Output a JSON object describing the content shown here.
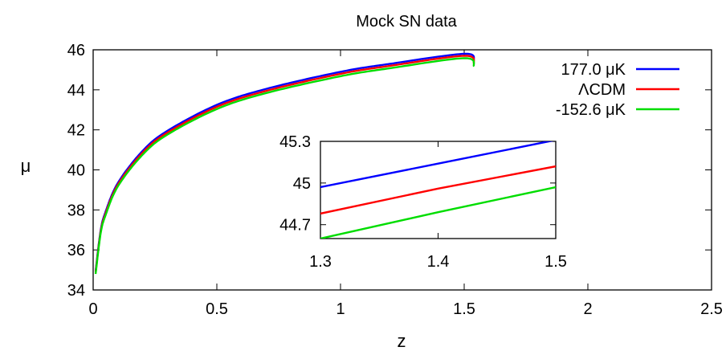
{
  "chart_data": [
    {
      "type": "line",
      "title": "Mock SN data",
      "xlabel": "z",
      "ylabel": "μ",
      "xlim": [
        0,
        2.5
      ],
      "ylim": [
        34,
        46
      ],
      "xticks": [
        "0",
        "0.5",
        "1",
        "1.5",
        "2",
        "2.5"
      ],
      "yticks": [
        "34",
        "36",
        "38",
        "40",
        "42",
        "44",
        "46"
      ],
      "grid": false,
      "legend_position": "top-right",
      "series": [
        {
          "name": "177.0 μK",
          "color": "#0000ff",
          "x": [
            0.01,
            0.03,
            0.05,
            0.1,
            0.2,
            0.3,
            0.5,
            0.7,
            1.0,
            1.2,
            1.5,
            1.54
          ],
          "y": [
            34.95,
            36.95,
            37.9,
            39.35,
            40.95,
            41.95,
            43.25,
            44.05,
            44.9,
            45.3,
            45.8,
            45.46
          ]
        },
        {
          "name": "ΛCDM",
          "color": "#ff0000",
          "x": [
            0.01,
            0.03,
            0.05,
            0.1,
            0.2,
            0.3,
            0.5,
            0.7,
            1.0,
            1.2,
            1.5,
            1.54
          ],
          "y": [
            34.88,
            36.88,
            37.82,
            39.27,
            40.86,
            41.86,
            43.15,
            43.95,
            44.8,
            45.2,
            45.7,
            45.31
          ]
        },
        {
          "name": "-152.6 μK",
          "color": "#00dd00",
          "x": [
            0.01,
            0.03,
            0.05,
            0.1,
            0.2,
            0.3,
            0.5,
            0.7,
            1.0,
            1.2,
            1.5,
            1.54
          ],
          "y": [
            34.8,
            36.8,
            37.73,
            39.18,
            40.76,
            41.76,
            43.04,
            43.84,
            44.68,
            45.08,
            45.58,
            45.17
          ]
        }
      ]
    },
    {
      "type": "line",
      "title": "",
      "xlim": [
        1.3,
        1.5
      ],
      "ylim": [
        44.6,
        45.3
      ],
      "xticks": [
        "1.3",
        "1.4",
        "1.5"
      ],
      "yticks": [
        "44.7",
        "45",
        "45.3"
      ],
      "grid": false,
      "series": [
        {
          "color": "#0000ff",
          "x": [
            1.3,
            1.4,
            1.5
          ],
          "y": [
            44.97,
            45.14,
            45.31
          ]
        },
        {
          "color": "#ff0000",
          "x": [
            1.3,
            1.4,
            1.5
          ],
          "y": [
            44.78,
            44.96,
            45.12
          ]
        },
        {
          "color": "#00dd00",
          "x": [
            1.3,
            1.4,
            1.5
          ],
          "y": [
            44.6,
            44.79,
            44.97
          ]
        }
      ]
    }
  ]
}
